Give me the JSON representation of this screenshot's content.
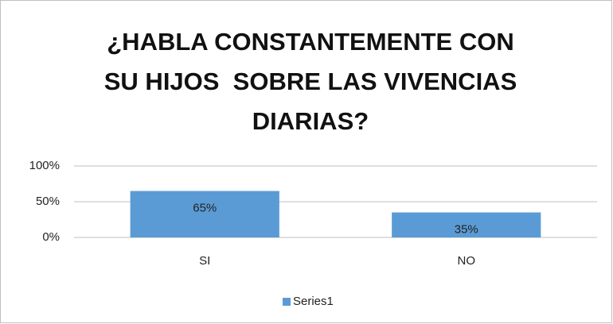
{
  "chart_data": {
    "type": "bar",
    "title": [
      "¿HABLA CONSTANTEMENTE CON",
      "SU HIJOS  SOBRE LAS VIVENCIAS",
      "DIARIAS?"
    ],
    "categories": [
      "SI",
      "NO"
    ],
    "series": [
      {
        "name": "Series1",
        "color": "#5b9bd5",
        "values": [
          65,
          35
        ],
        "value_labels": [
          "65%",
          "35%"
        ]
      }
    ],
    "ylim": [
      0,
      100
    ],
    "yticks": [
      {
        "value": 0,
        "label": "0%"
      },
      {
        "value": 50,
        "label": "50%"
      },
      {
        "value": 100,
        "label": "100%"
      }
    ],
    "grid": true,
    "legend": "bottom"
  }
}
